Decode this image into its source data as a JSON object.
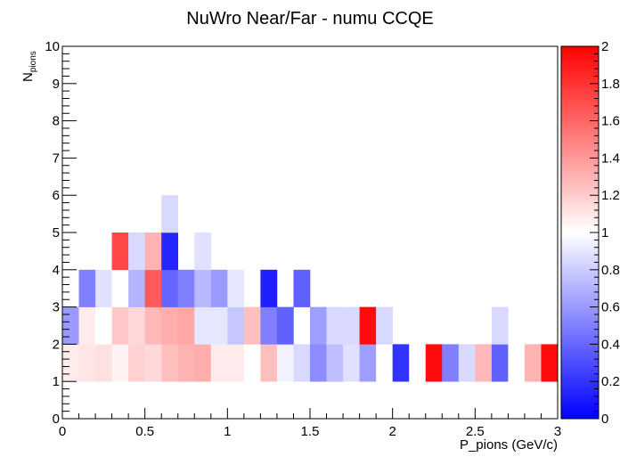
{
  "chart_data": {
    "type": "heatmap",
    "title": "NuWro Near/Far - numu CCQE",
    "xlabel": "P_pions (GeV/c)",
    "ylabel_main": "N",
    "ylabel_sub": "pions",
    "xlim": [
      0,
      3
    ],
    "ylim": [
      0,
      10
    ],
    "x_bin_width": 0.1,
    "y_bin_width": 1,
    "x_ticks": [
      "0",
      "0.5",
      "1",
      "1.5",
      "2",
      "2.5",
      "3"
    ],
    "y_ticks": [
      "0",
      "1",
      "2",
      "3",
      "4",
      "5",
      "6",
      "7",
      "8",
      "9",
      "10"
    ],
    "zlim": [
      0,
      2
    ],
    "z_ticks": [
      "0",
      "0.2",
      "0.4",
      "0.6",
      "0.8",
      "1",
      "1.2",
      "1.4",
      "1.6",
      "1.8",
      "2"
    ],
    "colorscale": [
      "#0000ff",
      "#ffffff",
      "#ff0000"
    ],
    "cells": [
      {
        "x": 0.0,
        "y": 0,
        "z": 1.0
      },
      {
        "x": 0.1,
        "y": 0,
        "z": 1.0
      },
      {
        "x": 0.2,
        "y": 0,
        "z": 1.0
      },
      {
        "x": 0.3,
        "y": 0,
        "z": 1.0
      },
      {
        "x": 0.4,
        "y": 0,
        "z": 1.0
      },
      {
        "x": 0.5,
        "y": 0,
        "z": 1.0
      },
      {
        "x": 0.6,
        "y": 0,
        "z": 1.0
      },
      {
        "x": 0.7,
        "y": 0,
        "z": 1.0
      },
      {
        "x": 0.8,
        "y": 0,
        "z": 1.0
      },
      {
        "x": 0.9,
        "y": 0,
        "z": 1.0
      },
      {
        "x": 1.0,
        "y": 0,
        "z": 1.0
      },
      {
        "x": 1.1,
        "y": 0,
        "z": 1.0
      },
      {
        "x": 1.2,
        "y": 0,
        "z": 1.0
      },
      {
        "x": 1.3,
        "y": 0,
        "z": 1.0
      },
      {
        "x": 1.4,
        "y": 0,
        "z": 1.0
      },
      {
        "x": 1.5,
        "y": 0,
        "z": 1.0
      },
      {
        "x": 1.6,
        "y": 0,
        "z": 1.0
      },
      {
        "x": 1.7,
        "y": 0,
        "z": 1.0
      },
      {
        "x": 1.8,
        "y": 0,
        "z": 1.0
      },
      {
        "x": 1.9,
        "y": 0,
        "z": 1.0
      },
      {
        "x": 2.0,
        "y": 0,
        "z": 1.0
      },
      {
        "x": 2.1,
        "y": 0,
        "z": 1.0
      },
      {
        "x": 2.2,
        "y": 0,
        "z": 1.0
      },
      {
        "x": 2.3,
        "y": 0,
        "z": 1.0
      },
      {
        "x": 2.4,
        "y": 0,
        "z": 1.0
      },
      {
        "x": 2.5,
        "y": 0,
        "z": 1.0
      },
      {
        "x": 2.6,
        "y": 0,
        "z": 1.0
      },
      {
        "x": 2.7,
        "y": 0,
        "z": 1.0
      },
      {
        "x": 2.8,
        "y": 0,
        "z": 1.0
      },
      {
        "x": 2.9,
        "y": 0,
        "z": 1.0
      },
      {
        "x": 0.0,
        "y": 1,
        "z": 1.08
      },
      {
        "x": 0.1,
        "y": 1,
        "z": 1.1
      },
      {
        "x": 0.2,
        "y": 1,
        "z": 1.12
      },
      {
        "x": 0.3,
        "y": 1,
        "z": 1.05
      },
      {
        "x": 0.4,
        "y": 1,
        "z": 1.18
      },
      {
        "x": 0.5,
        "y": 1,
        "z": 1.15
      },
      {
        "x": 0.6,
        "y": 1,
        "z": 1.25
      },
      {
        "x": 0.7,
        "y": 1,
        "z": 1.3
      },
      {
        "x": 0.8,
        "y": 1,
        "z": 1.32
      },
      {
        "x": 0.9,
        "y": 1,
        "z": 1.08
      },
      {
        "x": 1.0,
        "y": 1,
        "z": 1.08
      },
      {
        "x": 1.1,
        "y": 1,
        "z": 1.0
      },
      {
        "x": 1.2,
        "y": 1,
        "z": 1.25
      },
      {
        "x": 1.3,
        "y": 1,
        "z": 0.95
      },
      {
        "x": 1.4,
        "y": 1,
        "z": 0.85
      },
      {
        "x": 1.5,
        "y": 1,
        "z": 0.55
      },
      {
        "x": 1.6,
        "y": 1,
        "z": 0.75
      },
      {
        "x": 1.7,
        "y": 1,
        "z": 0.88
      },
      {
        "x": 1.8,
        "y": 1,
        "z": 0.62
      },
      {
        "x": 1.9,
        "y": 1,
        "z": 1.0
      },
      {
        "x": 2.0,
        "y": 1,
        "z": 0.2
      },
      {
        "x": 2.1,
        "y": 1,
        "z": 1.0
      },
      {
        "x": 2.2,
        "y": 1,
        "z": 1.95
      },
      {
        "x": 2.3,
        "y": 1,
        "z": 0.5
      },
      {
        "x": 2.4,
        "y": 1,
        "z": 0.85
      },
      {
        "x": 2.5,
        "y": 1,
        "z": 1.28
      },
      {
        "x": 2.6,
        "y": 1,
        "z": 0.38
      },
      {
        "x": 2.7,
        "y": 1,
        "z": 1.0
      },
      {
        "x": 2.8,
        "y": 1,
        "z": 1.3
      },
      {
        "x": 2.9,
        "y": 1,
        "z": 1.95
      },
      {
        "x": 0.0,
        "y": 2,
        "z": 0.6
      },
      {
        "x": 0.1,
        "y": 2,
        "z": 1.08
      },
      {
        "x": 0.2,
        "y": 2,
        "z": 1.0
      },
      {
        "x": 0.3,
        "y": 2,
        "z": 1.22
      },
      {
        "x": 0.4,
        "y": 2,
        "z": 1.15
      },
      {
        "x": 0.5,
        "y": 2,
        "z": 1.28
      },
      {
        "x": 0.6,
        "y": 2,
        "z": 1.32
      },
      {
        "x": 0.7,
        "y": 2,
        "z": 1.35
      },
      {
        "x": 0.8,
        "y": 2,
        "z": 0.9
      },
      {
        "x": 0.9,
        "y": 2,
        "z": 0.9
      },
      {
        "x": 1.0,
        "y": 2,
        "z": 0.78
      },
      {
        "x": 1.1,
        "y": 2,
        "z": 1.25
      },
      {
        "x": 1.2,
        "y": 2,
        "z": 0.5
      },
      {
        "x": 1.3,
        "y": 2,
        "z": 0.38
      },
      {
        "x": 1.5,
        "y": 2,
        "z": 0.62
      },
      {
        "x": 1.6,
        "y": 2,
        "z": 0.85
      },
      {
        "x": 1.7,
        "y": 2,
        "z": 0.85
      },
      {
        "x": 1.8,
        "y": 2,
        "z": 1.95
      },
      {
        "x": 1.9,
        "y": 2,
        "z": 0.85
      },
      {
        "x": 2.6,
        "y": 2,
        "z": 0.85
      },
      {
        "x": 0.1,
        "y": 3,
        "z": 0.5
      },
      {
        "x": 0.2,
        "y": 3,
        "z": 0.88
      },
      {
        "x": 0.3,
        "y": 3,
        "z": 1.0
      },
      {
        "x": 0.4,
        "y": 3,
        "z": 0.7
      },
      {
        "x": 0.5,
        "y": 3,
        "z": 1.65
      },
      {
        "x": 0.6,
        "y": 3,
        "z": 0.4
      },
      {
        "x": 0.7,
        "y": 3,
        "z": 0.5
      },
      {
        "x": 0.8,
        "y": 3,
        "z": 0.72
      },
      {
        "x": 0.9,
        "y": 3,
        "z": 0.6
      },
      {
        "x": 1.0,
        "y": 3,
        "z": 0.9
      },
      {
        "x": 1.2,
        "y": 3,
        "z": 0.12
      },
      {
        "x": 1.4,
        "y": 3,
        "z": 0.38
      },
      {
        "x": 0.3,
        "y": 4,
        "z": 1.72
      },
      {
        "x": 0.4,
        "y": 4,
        "z": 0.85
      },
      {
        "x": 0.5,
        "y": 4,
        "z": 1.3
      },
      {
        "x": 0.6,
        "y": 4,
        "z": 0.15
      },
      {
        "x": 0.8,
        "y": 4,
        "z": 0.88
      },
      {
        "x": 0.6,
        "y": 5,
        "z": 0.85
      }
    ]
  }
}
